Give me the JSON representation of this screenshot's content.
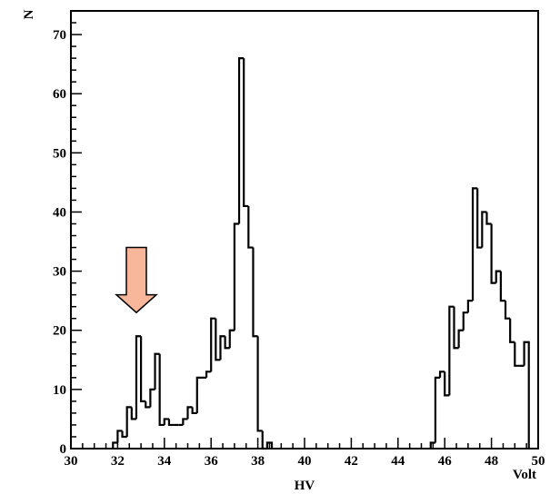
{
  "chart_data": {
    "type": "histogram",
    "xlabel": "HV",
    "x_unit_label": "Volt",
    "ylabel": "N",
    "xlim": [
      30,
      50
    ],
    "ylim": [
      0,
      74
    ],
    "x_ticks": [
      30,
      32,
      34,
      36,
      38,
      40,
      42,
      44,
      46,
      48,
      50
    ],
    "y_ticks": [
      0,
      10,
      20,
      30,
      40,
      50,
      60,
      70
    ],
    "bin_width": 0.2,
    "bins": [
      [
        31.8,
        1
      ],
      [
        32.0,
        3
      ],
      [
        32.2,
        2
      ],
      [
        32.4,
        7
      ],
      [
        32.6,
        5
      ],
      [
        32.8,
        19
      ],
      [
        33.0,
        8
      ],
      [
        33.2,
        7
      ],
      [
        33.4,
        10
      ],
      [
        33.6,
        16
      ],
      [
        33.8,
        4
      ],
      [
        34.0,
        5
      ],
      [
        34.2,
        4
      ],
      [
        34.4,
        4
      ],
      [
        34.6,
        4
      ],
      [
        34.8,
        5
      ],
      [
        35.0,
        7
      ],
      [
        35.2,
        6
      ],
      [
        35.4,
        12
      ],
      [
        35.6,
        12
      ],
      [
        35.8,
        13
      ],
      [
        36.0,
        22
      ],
      [
        36.2,
        15
      ],
      [
        36.4,
        19
      ],
      [
        36.6,
        17
      ],
      [
        36.8,
        20
      ],
      [
        37.0,
        38
      ],
      [
        37.2,
        66
      ],
      [
        37.4,
        41
      ],
      [
        37.6,
        34
      ],
      [
        37.8,
        19
      ],
      [
        38.0,
        3
      ],
      [
        38.2,
        0
      ],
      [
        38.4,
        1
      ],
      [
        45.4,
        1
      ],
      [
        45.6,
        12
      ],
      [
        45.8,
        13
      ],
      [
        46.0,
        9
      ],
      [
        46.2,
        24
      ],
      [
        46.4,
        17
      ],
      [
        46.6,
        20
      ],
      [
        46.8,
        23
      ],
      [
        47.0,
        25
      ],
      [
        47.2,
        44
      ],
      [
        47.4,
        34
      ],
      [
        47.6,
        40
      ],
      [
        47.8,
        38
      ],
      [
        48.0,
        28
      ],
      [
        48.2,
        30
      ],
      [
        48.4,
        25
      ],
      [
        48.6,
        22
      ],
      [
        48.8,
        18
      ],
      [
        49.0,
        14
      ],
      [
        49.2,
        14
      ],
      [
        49.4,
        18
      ]
    ],
    "grid": false,
    "annotation": {
      "type": "arrow",
      "direction": "down",
      "points_to_x": 32.8,
      "color": "#f8b69a"
    }
  }
}
